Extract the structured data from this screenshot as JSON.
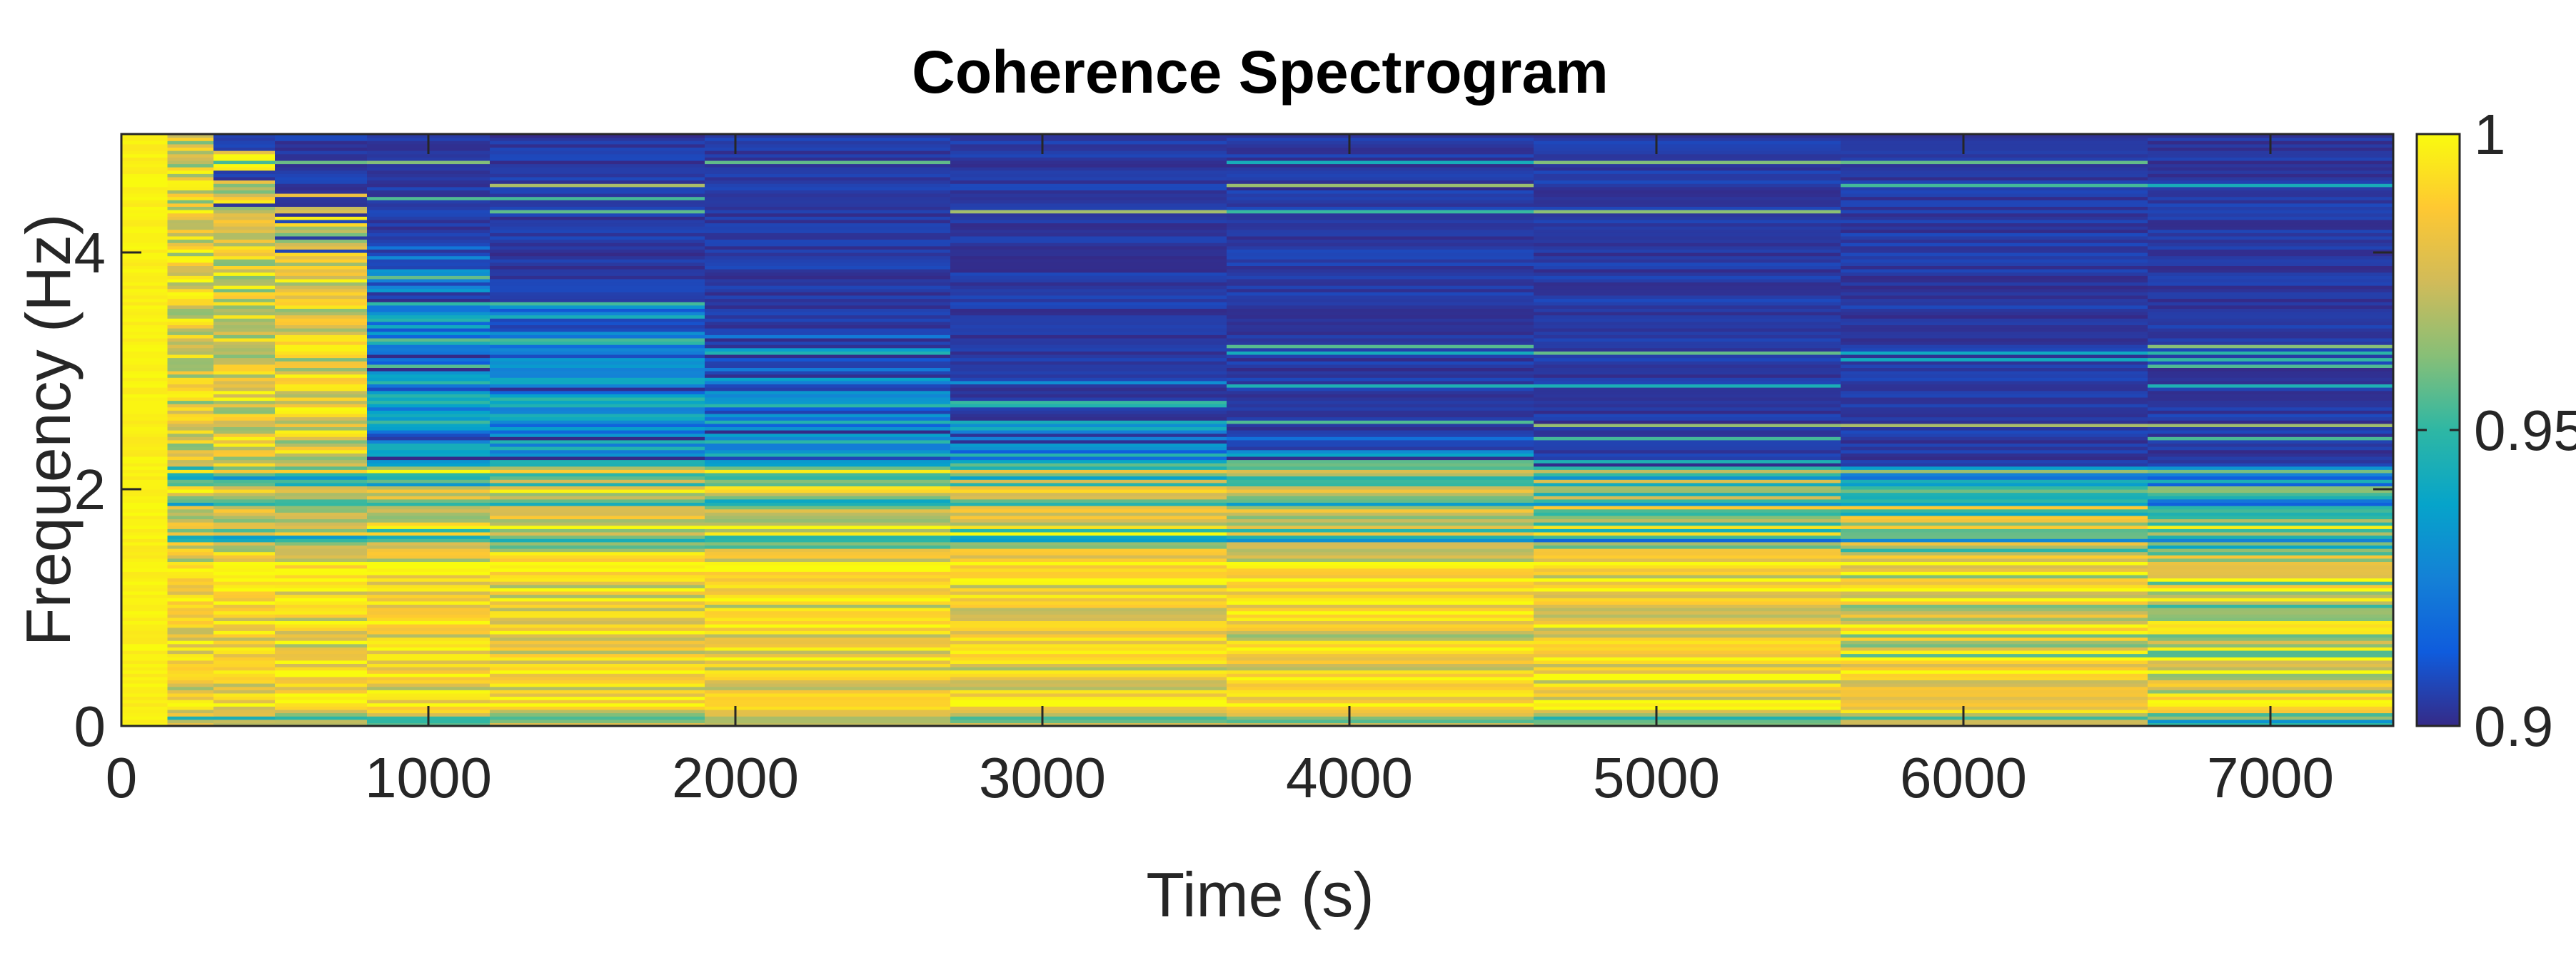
{
  "chart_data": {
    "type": "heatmap",
    "title": "Coherence Spectrogram",
    "xlabel": "Time (s)",
    "ylabel": "Frequency (Hz)",
    "xlim": [
      0,
      7400
    ],
    "ylim": [
      0,
      5
    ],
    "x_ticks": [
      0,
      1000,
      2000,
      3000,
      4000,
      5000,
      6000,
      7000
    ],
    "x_tick_labels": [
      "0",
      "1000",
      "2000",
      "3000",
      "4000",
      "5000",
      "6000",
      "7000"
    ],
    "y_ticks": [
      0,
      2,
      4
    ],
    "y_tick_labels": [
      "0",
      "2",
      "4"
    ],
    "colorbar": {
      "range": [
        0.9,
        1
      ],
      "ticks": [
        0.9,
        0.95,
        1
      ],
      "tick_labels": [
        "0.9",
        "0.95",
        "1"
      ],
      "colormap": "parula",
      "colors": [
        "#352a87",
        "#0f5cdd",
        "#1481d6",
        "#06a4ca",
        "#2eb7a4",
        "#87bf77",
        "#d1bb59",
        "#fec832",
        "#f9fb0e"
      ]
    },
    "description_bands": [
      {
        "freq_range": [
          0,
          0.15
        ],
        "coherence": 0.95
      },
      {
        "freq_range": [
          0.15,
          1.5
        ],
        "coherence": 0.985
      },
      {
        "freq_range": [
          1.5,
          2.2
        ],
        "coherence": 0.95
      },
      {
        "freq_range": [
          2.2,
          5
        ],
        "coherence": 0.9
      }
    ],
    "low_time_high_coherence_until": 150,
    "decay_time_by_frequency": [
      {
        "freq": 0.5,
        "time": 7400
      },
      {
        "freq": 1.0,
        "time": 7400
      },
      {
        "freq": 1.5,
        "time": 6500
      },
      {
        "freq": 2.0,
        "time": 5200
      },
      {
        "freq": 2.5,
        "time": 3200
      },
      {
        "freq": 3.0,
        "time": 2000
      },
      {
        "freq": 3.5,
        "time": 1200
      },
      {
        "freq": 4.0,
        "time": 700
      },
      {
        "freq": 4.5,
        "time": 400
      },
      {
        "freq": 5.0,
        "time": 200
      }
    ]
  }
}
